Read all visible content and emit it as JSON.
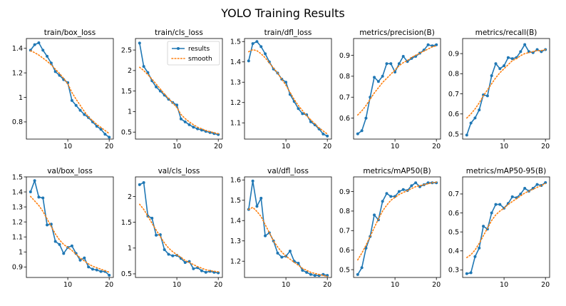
{
  "figure": {
    "title": "YOLO Training Results",
    "colors": {
      "results": "#1f77b4",
      "smooth": "#ff7f0e"
    },
    "legend": {
      "entries": [
        "results",
        "smooth"
      ],
      "placement": "upper-right",
      "in_panel": "train/cls_loss"
    }
  },
  "chart_data": [
    {
      "type": "line",
      "title": "train/box_loss",
      "xlim": [
        0,
        21
      ],
      "ylim": [
        0.66,
        1.48
      ],
      "xticks": [
        10,
        20
      ],
      "yticks": [
        0.8,
        1.0,
        1.2,
        1.4
      ],
      "x": [
        1,
        2,
        3,
        4,
        5,
        6,
        7,
        8,
        9,
        10,
        11,
        12,
        13,
        14,
        15,
        16,
        17,
        18,
        19,
        20
      ],
      "series": [
        {
          "name": "results",
          "style": "line-marker",
          "values": [
            1.385,
            1.43,
            1.445,
            1.385,
            1.335,
            1.28,
            1.21,
            1.18,
            1.145,
            1.12,
            0.975,
            0.935,
            0.895,
            0.86,
            0.835,
            0.8,
            0.765,
            0.74,
            0.7,
            0.675
          ]
        },
        {
          "name": "smooth",
          "style": "dotted",
          "values": [
            1.38,
            1.365,
            1.345,
            1.32,
            1.295,
            1.265,
            1.23,
            1.195,
            1.155,
            1.11,
            1.04,
            0.985,
            0.935,
            0.885,
            0.84,
            0.81,
            0.78,
            0.755,
            0.73,
            0.705
          ]
        }
      ]
    },
    {
      "type": "line",
      "title": "train/cls_loss",
      "xlim": [
        0,
        21
      ],
      "ylim": [
        0.33,
        2.78
      ],
      "xticks": [
        10,
        20
      ],
      "yticks": [
        0.5,
        1.0,
        1.5,
        2.0,
        2.5
      ],
      "x": [
        1,
        2,
        3,
        4,
        5,
        6,
        7,
        8,
        9,
        10,
        11,
        12,
        13,
        14,
        15,
        16,
        17,
        18,
        19,
        20
      ],
      "series": [
        {
          "name": "results",
          "style": "line-marker",
          "values": [
            2.67,
            2.1,
            1.95,
            1.75,
            1.6,
            1.5,
            1.4,
            1.3,
            1.22,
            1.16,
            0.82,
            0.75,
            0.68,
            0.62,
            0.58,
            0.55,
            0.52,
            0.49,
            0.465,
            0.44
          ]
        },
        {
          "name": "smooth",
          "style": "dotted",
          "values": [
            2.08,
            2.0,
            1.9,
            1.79,
            1.67,
            1.55,
            1.43,
            1.32,
            1.21,
            1.1,
            0.93,
            0.83,
            0.75,
            0.68,
            0.62,
            0.58,
            0.54,
            0.51,
            0.485,
            0.46
          ]
        }
      ]
    },
    {
      "type": "line",
      "title": "train/dfl_loss",
      "xlim": [
        0,
        21
      ],
      "ylim": [
        1.02,
        1.515
      ],
      "xticks": [
        10,
        20
      ],
      "yticks": [
        1.1,
        1.2,
        1.3,
        1.4,
        1.5
      ],
      "x": [
        1,
        2,
        3,
        4,
        5,
        6,
        7,
        8,
        9,
        10,
        11,
        12,
        13,
        14,
        15,
        16,
        17,
        18,
        19,
        20
      ],
      "series": [
        {
          "name": "results",
          "style": "line-marker",
          "values": [
            1.405,
            1.49,
            1.5,
            1.475,
            1.44,
            1.4,
            1.365,
            1.345,
            1.315,
            1.3,
            1.24,
            1.205,
            1.17,
            1.145,
            1.14,
            1.105,
            1.09,
            1.07,
            1.045,
            1.035
          ]
        },
        {
          "name": "smooth",
          "style": "dotted",
          "values": [
            1.45,
            1.46,
            1.455,
            1.44,
            1.42,
            1.395,
            1.37,
            1.345,
            1.315,
            1.285,
            1.25,
            1.215,
            1.185,
            1.16,
            1.135,
            1.115,
            1.095,
            1.075,
            1.06,
            1.045
          ]
        }
      ]
    },
    {
      "type": "line",
      "title": "metrics/precision(B)",
      "xlim": [
        0,
        21
      ],
      "ylim": [
        0.5,
        0.98
      ],
      "xticks": [
        10,
        20
      ],
      "yticks": [
        0.6,
        0.7,
        0.8,
        0.9
      ],
      "x": [
        1,
        2,
        3,
        4,
        5,
        6,
        7,
        8,
        9,
        10,
        11,
        12,
        13,
        14,
        15,
        16,
        17,
        18,
        19,
        20
      ],
      "series": [
        {
          "name": "results",
          "style": "line-marker",
          "values": [
            0.525,
            0.54,
            0.6,
            0.7,
            0.795,
            0.775,
            0.8,
            0.86,
            0.86,
            0.82,
            0.86,
            0.895,
            0.87,
            0.885,
            0.895,
            0.91,
            0.925,
            0.95,
            0.945,
            0.95
          ]
        },
        {
          "name": "smooth",
          "style": "dotted",
          "values": [
            0.615,
            0.635,
            0.66,
            0.69,
            0.72,
            0.745,
            0.77,
            0.79,
            0.81,
            0.83,
            0.85,
            0.865,
            0.875,
            0.89,
            0.9,
            0.91,
            0.92,
            0.93,
            0.94,
            0.945
          ]
        }
      ]
    },
    {
      "type": "line",
      "title": "metrics/recall(B)",
      "xlim": [
        0,
        21
      ],
      "ylim": [
        0.475,
        0.975
      ],
      "xticks": [
        10,
        20
      ],
      "yticks": [
        0.5,
        0.6,
        0.7,
        0.8,
        0.9
      ],
      "x": [
        1,
        2,
        3,
        4,
        5,
        6,
        7,
        8,
        9,
        10,
        11,
        12,
        13,
        14,
        15,
        16,
        17,
        18,
        19,
        20
      ],
      "series": [
        {
          "name": "results",
          "style": "line-marker",
          "values": [
            0.495,
            0.555,
            0.58,
            0.62,
            0.695,
            0.69,
            0.79,
            0.85,
            0.825,
            0.84,
            0.88,
            0.875,
            0.88,
            0.91,
            0.945,
            0.91,
            0.905,
            0.92,
            0.91,
            0.92
          ]
        },
        {
          "name": "smooth",
          "style": "dotted",
          "values": [
            0.58,
            0.6,
            0.625,
            0.655,
            0.69,
            0.72,
            0.75,
            0.78,
            0.805,
            0.825,
            0.845,
            0.865,
            0.875,
            0.89,
            0.9,
            0.905,
            0.91,
            0.915,
            0.915,
            0.92
          ]
        }
      ]
    },
    {
      "type": "line",
      "title": "val/box_loss",
      "xlim": [
        0,
        21
      ],
      "ylim": [
        0.83,
        1.5
      ],
      "xticks": [
        10,
        20
      ],
      "yticks": [
        0.9,
        1.0,
        1.1,
        1.2,
        1.3,
        1.4,
        1.5
      ],
      "x": [
        1,
        2,
        3,
        4,
        5,
        6,
        7,
        8,
        9,
        10,
        11,
        12,
        13,
        14,
        15,
        16,
        17,
        18,
        19,
        20
      ],
      "series": [
        {
          "name": "results",
          "style": "line-marker",
          "values": [
            1.4,
            1.475,
            1.365,
            1.36,
            1.18,
            1.185,
            1.07,
            1.05,
            0.99,
            1.03,
            1.04,
            0.99,
            0.945,
            0.96,
            0.9,
            0.885,
            0.88,
            0.87,
            0.87,
            0.845
          ]
        },
        {
          "name": "smooth",
          "style": "dotted",
          "values": [
            1.37,
            1.34,
            1.31,
            1.27,
            1.22,
            1.17,
            1.12,
            1.08,
            1.05,
            1.03,
            1.01,
            0.985,
            0.96,
            0.94,
            0.92,
            0.905,
            0.895,
            0.885,
            0.875,
            0.865
          ]
        }
      ]
    },
    {
      "type": "line",
      "title": "val/cls_loss",
      "xlim": [
        0,
        21
      ],
      "ylim": [
        0.43,
        2.38
      ],
      "xticks": [
        10,
        20
      ],
      "yticks": [
        0.5,
        1.0,
        1.5,
        2.0
      ],
      "x": [
        1,
        2,
        3,
        4,
        5,
        6,
        7,
        8,
        9,
        10,
        11,
        12,
        13,
        14,
        15,
        16,
        17,
        18,
        19,
        20
      ],
      "series": [
        {
          "name": "results",
          "style": "line-marker",
          "values": [
            2.23,
            2.27,
            1.62,
            1.58,
            1.25,
            1.26,
            0.97,
            0.88,
            0.85,
            0.86,
            0.8,
            0.72,
            0.74,
            0.6,
            0.62,
            0.56,
            0.53,
            0.55,
            0.53,
            0.52
          ]
        },
        {
          "name": "smooth",
          "style": "dotted",
          "values": [
            1.85,
            1.75,
            1.62,
            1.48,
            1.35,
            1.22,
            1.1,
            1.0,
            0.93,
            0.87,
            0.82,
            0.76,
            0.72,
            0.68,
            0.64,
            0.61,
            0.58,
            0.56,
            0.55,
            0.54
          ]
        }
      ]
    },
    {
      "type": "line",
      "title": "val/dfl_loss",
      "xlim": [
        0,
        21
      ],
      "ylim": [
        1.12,
        1.615
      ],
      "xticks": [
        10,
        20
      ],
      "yticks": [
        1.2,
        1.3,
        1.4,
        1.5,
        1.6
      ],
      "x": [
        1,
        2,
        3,
        4,
        5,
        6,
        7,
        8,
        9,
        10,
        11,
        12,
        13,
        14,
        15,
        16,
        17,
        18,
        19,
        20
      ],
      "series": [
        {
          "name": "results",
          "style": "line-marker",
          "values": [
            1.455,
            1.595,
            1.47,
            1.51,
            1.325,
            1.34,
            1.3,
            1.24,
            1.22,
            1.225,
            1.25,
            1.2,
            1.19,
            1.155,
            1.145,
            1.135,
            1.13,
            1.13,
            1.135,
            1.13
          ]
        },
        {
          "name": "smooth",
          "style": "dotted",
          "values": [
            1.455,
            1.465,
            1.445,
            1.42,
            1.38,
            1.34,
            1.3,
            1.27,
            1.245,
            1.225,
            1.21,
            1.195,
            1.18,
            1.165,
            1.155,
            1.145,
            1.14,
            1.135,
            1.13,
            1.125
          ]
        }
      ]
    },
    {
      "type": "line",
      "title": "metrics/mAP50(B)",
      "xlim": [
        0,
        21
      ],
      "ylim": [
        0.46,
        0.975
      ],
      "xticks": [
        10,
        20
      ],
      "yticks": [
        0.5,
        0.6,
        0.7,
        0.8,
        0.9
      ],
      "x": [
        1,
        2,
        3,
        4,
        5,
        6,
        7,
        8,
        9,
        10,
        11,
        12,
        13,
        14,
        15,
        16,
        17,
        18,
        19,
        20
      ],
      "series": [
        {
          "name": "results",
          "style": "line-marker",
          "values": [
            0.475,
            0.51,
            0.61,
            0.67,
            0.78,
            0.755,
            0.85,
            0.89,
            0.875,
            0.875,
            0.9,
            0.91,
            0.905,
            0.93,
            0.945,
            0.925,
            0.935,
            0.945,
            0.945,
            0.945
          ]
        },
        {
          "name": "smooth",
          "style": "dotted",
          "values": [
            0.55,
            0.585,
            0.625,
            0.67,
            0.715,
            0.76,
            0.8,
            0.83,
            0.855,
            0.87,
            0.885,
            0.895,
            0.905,
            0.915,
            0.925,
            0.93,
            0.935,
            0.94,
            0.945,
            0.948
          ]
        }
      ]
    },
    {
      "type": "line",
      "title": "metrics/mAP50-95(B)",
      "xlim": [
        0,
        21
      ],
      "ylim": [
        0.26,
        0.79
      ],
      "xticks": [
        10,
        20
      ],
      "yticks": [
        0.3,
        0.4,
        0.5,
        0.6,
        0.7
      ],
      "x": [
        1,
        2,
        3,
        4,
        5,
        6,
        7,
        8,
        9,
        10,
        11,
        12,
        13,
        14,
        15,
        16,
        17,
        18,
        19,
        20
      ],
      "series": [
        {
          "name": "results",
          "style": "line-marker",
          "values": [
            0.28,
            0.285,
            0.37,
            0.415,
            0.53,
            0.515,
            0.6,
            0.645,
            0.645,
            0.625,
            0.65,
            0.685,
            0.68,
            0.7,
            0.73,
            0.715,
            0.73,
            0.75,
            0.745,
            0.76
          ]
        },
        {
          "name": "smooth",
          "style": "dotted",
          "values": [
            0.365,
            0.38,
            0.405,
            0.44,
            0.48,
            0.52,
            0.56,
            0.59,
            0.61,
            0.625,
            0.645,
            0.66,
            0.675,
            0.69,
            0.705,
            0.715,
            0.725,
            0.735,
            0.745,
            0.755
          ]
        }
      ]
    }
  ]
}
